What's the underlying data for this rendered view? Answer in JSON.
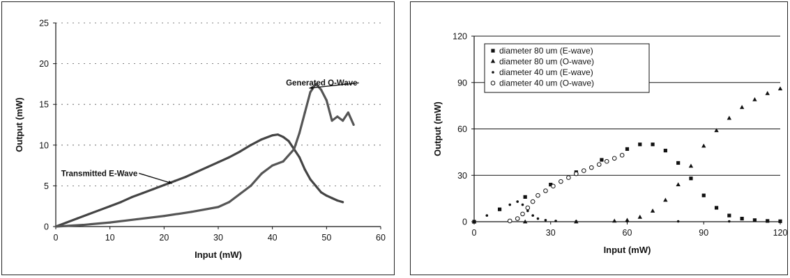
{
  "chart_data": [
    {
      "type": "scatter",
      "xlabel": "Input (mW)",
      "ylabel": "Output (mW)",
      "xlim": [
        0,
        60
      ],
      "ylim": [
        0,
        25
      ],
      "xticks": [
        0,
        10,
        20,
        30,
        40,
        50,
        60
      ],
      "yticks": [
        0,
        5,
        10,
        15,
        20,
        25
      ],
      "grid": "dotted horizontal",
      "annotations": [
        {
          "text": "Generated O-Wave",
          "x": 42.5,
          "y": 17.3,
          "arrow_to": [
            46.8,
            17.0
          ]
        },
        {
          "text": "Transmitted E-Wave",
          "x": 1,
          "y": 6.2,
          "arrow_to": [
            21.5,
            5.3
          ]
        }
      ],
      "series": [
        {
          "name": "Transmitted E-Wave",
          "x": [
            0,
            2,
            4,
            6,
            8,
            10,
            12,
            14,
            16,
            18,
            20,
            22,
            24,
            26,
            28,
            30,
            32,
            34,
            36,
            38,
            40,
            41,
            42,
            43,
            44,
            45,
            46,
            47,
            48,
            49,
            50,
            51,
            52,
            53
          ],
          "y": [
            0,
            0.5,
            1.0,
            1.5,
            2.0,
            2.5,
            3.0,
            3.6,
            4.1,
            4.6,
            5.1,
            5.6,
            6.1,
            6.7,
            7.3,
            7.9,
            8.5,
            9.2,
            10.0,
            10.7,
            11.2,
            11.3,
            11.0,
            10.5,
            9.5,
            8.5,
            7.0,
            5.8,
            5.0,
            4.2,
            3.8,
            3.5,
            3.2,
            3.0
          ]
        },
        {
          "name": "Generated O-Wave",
          "x": [
            0,
            5,
            10,
            15,
            20,
            25,
            30,
            32,
            34,
            36,
            38,
            40,
            42,
            44,
            45,
            46,
            47,
            48,
            49,
            50,
            51,
            52,
            53,
            54,
            55
          ],
          "y": [
            0,
            0.2,
            0.5,
            0.9,
            1.3,
            1.8,
            2.4,
            3.0,
            4.0,
            5.0,
            6.5,
            7.5,
            8.0,
            9.5,
            11.5,
            14.0,
            16.5,
            17.5,
            16.8,
            15.5,
            13.0,
            13.5,
            13.0,
            14.0,
            12.5
          ]
        }
      ]
    },
    {
      "type": "scatter",
      "xlabel": "Input (mW)",
      "ylabel": "Output (mW)",
      "xlim": [
        0,
        120
      ],
      "ylim": [
        0,
        120
      ],
      "xticks": [
        0,
        30,
        60,
        90,
        120
      ],
      "yticks": [
        0,
        30,
        60,
        90,
        120
      ],
      "grid": "solid horizontal",
      "legend_position": "top-left",
      "series": [
        {
          "name": "diameter 80 um (E-wave)",
          "marker": "square",
          "x": [
            0,
            10,
            20,
            30,
            40,
            50,
            60,
            65,
            70,
            75,
            80,
            85,
            90,
            95,
            100,
            105,
            110,
            115,
            120
          ],
          "y": [
            0,
            8,
            16,
            24,
            32,
            40,
            47,
            50,
            50,
            46,
            38,
            28,
            17,
            9,
            4,
            2,
            1,
            0.5,
            0.3
          ]
        },
        {
          "name": "diameter 80 um (O-wave)",
          "marker": "triangle",
          "x": [
            0,
            20,
            40,
            55,
            60,
            65,
            70,
            75,
            80,
            85,
            90,
            95,
            100,
            105,
            110,
            115,
            120
          ],
          "y": [
            0,
            0,
            0,
            0.5,
            1,
            3,
            7,
            14,
            24,
            36,
            49,
            59,
            67,
            74,
            79,
            83,
            86
          ]
        },
        {
          "name": "diameter 40 um (E-wave)",
          "marker": "dot",
          "x": [
            0,
            5,
            10,
            14,
            17,
            19,
            21,
            23,
            25,
            28,
            32,
            40,
            60,
            80,
            100,
            120
          ],
          "y": [
            0,
            4,
            8,
            11,
            13,
            11,
            7,
            4,
            2,
            1,
            0.5,
            0.3,
            0.2,
            0.2,
            0.2,
            0.2
          ]
        },
        {
          "name": "diameter 40 um (O-wave)",
          "marker": "circle",
          "x": [
            14,
            17,
            19,
            21,
            23,
            25,
            28,
            31,
            34,
            37,
            40,
            43,
            46,
            49,
            52,
            55,
            58
          ],
          "y": [
            0.5,
            2,
            5,
            9,
            13,
            17,
            20,
            23,
            26,
            28.5,
            31,
            33,
            35,
            37,
            39,
            41,
            43
          ]
        }
      ]
    }
  ]
}
